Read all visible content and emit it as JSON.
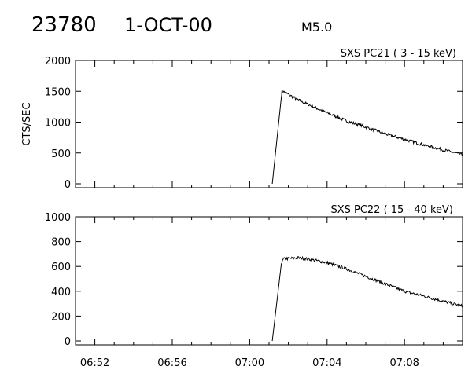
{
  "header": {
    "event_id": "23780",
    "date": "1-OCT-00",
    "flare_class": "M5.0"
  },
  "chart_data": [
    {
      "type": "line",
      "title": "SXS PC21  (  3 - 15 keV)",
      "ylabel": "CTS/SEC",
      "xlabel": "",
      "ylim": [
        0,
        2000
      ],
      "xlim": [
        "06:51",
        "07:11"
      ],
      "yticks": [
        "0",
        "500",
        "1000",
        "1500",
        "2000"
      ],
      "xticks": [],
      "grid": false,
      "series": [
        {
          "points": [
            {
              "x": "07:01:10",
              "y": 0
            },
            {
              "x": "07:01:38",
              "y": 1400
            },
            {
              "x": "07:01:40",
              "y": 1510
            },
            {
              "x": "07:02:30",
              "y": 1360
            },
            {
              "x": "07:03:00",
              "y": 1290
            },
            {
              "x": "07:04:00",
              "y": 1150
            },
            {
              "x": "07:05:00",
              "y": 1020
            },
            {
              "x": "07:06:00",
              "y": 920
            },
            {
              "x": "07:07:00",
              "y": 810
            },
            {
              "x": "07:08:00",
              "y": 720
            },
            {
              "x": "07:09:00",
              "y": 630
            },
            {
              "x": "07:10:00",
              "y": 550
            },
            {
              "x": "07:11:00",
              "y": 470
            }
          ]
        }
      ]
    },
    {
      "type": "line",
      "title": "SXS PC22  ( 15 - 40 keV)",
      "ylabel": "",
      "xlabel": "",
      "ylim": [
        0,
        1000
      ],
      "xlim": [
        "06:51",
        "07:11"
      ],
      "yticks": [
        "0",
        "200",
        "400",
        "600",
        "800",
        "1000"
      ],
      "xticks": [
        "06:52",
        "06:56",
        "07:00",
        "07:04",
        "07:08"
      ],
      "grid": false,
      "series": [
        {
          "points": [
            {
              "x": "07:01:10",
              "y": 0
            },
            {
              "x": "07:01:38",
              "y": 620
            },
            {
              "x": "07:01:45",
              "y": 660
            },
            {
              "x": "07:02:30",
              "y": 670
            },
            {
              "x": "07:03:00",
              "y": 660
            },
            {
              "x": "07:04:00",
              "y": 630
            },
            {
              "x": "07:05:00",
              "y": 580
            },
            {
              "x": "07:06:00",
              "y": 520
            },
            {
              "x": "07:07:00",
              "y": 460
            },
            {
              "x": "07:08:00",
              "y": 400
            },
            {
              "x": "07:09:00",
              "y": 360
            },
            {
              "x": "07:10:00",
              "y": 320
            },
            {
              "x": "07:11:00",
              "y": 280
            }
          ]
        }
      ]
    }
  ]
}
